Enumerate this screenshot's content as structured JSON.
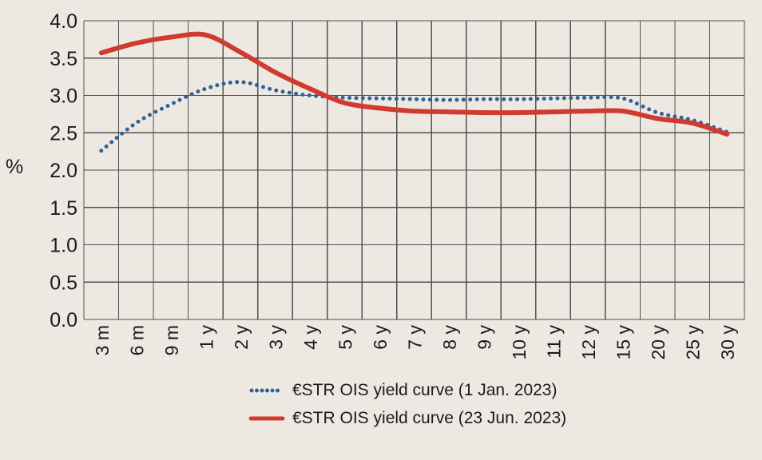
{
  "figure": {
    "background": "#EDE9E2",
    "text_color": "#1C1B19"
  },
  "chart_data": {
    "type": "line",
    "title": "",
    "xlabel": "",
    "ylabel": "%",
    "ylim": [
      0.0,
      4.0
    ],
    "ytick_step": 0.5,
    "ytick_labels": [
      "4.0",
      "3.5",
      "3.0",
      "2.5",
      "2.0",
      "1.5",
      "1.0",
      "0.5",
      "0.0"
    ],
    "grid": true,
    "grid_color": "#52504B",
    "background": "#EDE9E2",
    "text_color": "#1C1B19",
    "legend_position": "bottom",
    "categories": [
      "3 m",
      "6 m",
      "9 m",
      "1 y",
      "2 y",
      "3 y",
      "4 y",
      "5 y",
      "6 y",
      "7 y",
      "8 y",
      "9 y",
      "10 y",
      "11 y",
      "12 y",
      "15 y",
      "20 y",
      "25 y",
      "30 y"
    ],
    "series": [
      {
        "name": "€STR OIS yield curve (1 Jan. 2023)",
        "style": "dotted",
        "color": "#2F6398",
        "values": [
          2.26,
          2.63,
          2.88,
          3.09,
          3.18,
          3.07,
          3.0,
          2.97,
          2.96,
          2.95,
          2.94,
          2.95,
          2.95,
          2.96,
          2.97,
          2.96,
          2.77,
          2.67,
          2.51
        ]
      },
      {
        "name": "€STR OIS yield curve (23 Jun. 2023)",
        "style": "solid",
        "color": "#D13B2F",
        "values": [
          3.57,
          3.7,
          3.78,
          3.81,
          3.58,
          3.31,
          3.09,
          2.9,
          2.83,
          2.79,
          2.78,
          2.77,
          2.77,
          2.78,
          2.79,
          2.79,
          2.69,
          2.63,
          2.48
        ]
      }
    ]
  }
}
